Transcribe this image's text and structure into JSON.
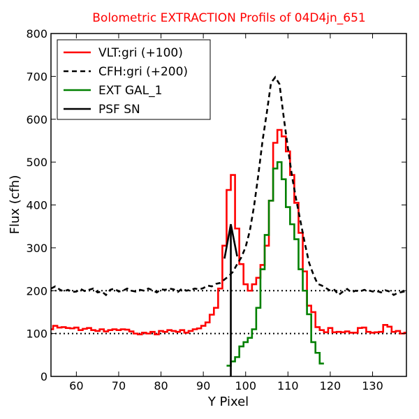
{
  "chart_data": {
    "type": "line",
    "title": "Bolometric EXTRACTION Profils of 04D4jn_651",
    "title_color": "#ff0000",
    "xlabel": "Y Pixel",
    "ylabel": "Flux (cfh)",
    "xlim": [
      54,
      138
    ],
    "ylim": [
      0,
      800
    ],
    "xticks": [
      60,
      70,
      80,
      90,
      100,
      110,
      120,
      130
    ],
    "yticks": [
      0,
      100,
      200,
      300,
      400,
      500,
      600,
      700,
      800
    ],
    "legend_position": "top-left",
    "reference_lines": [
      {
        "y": 100,
        "style": "dotted",
        "color": "#000000"
      },
      {
        "y": 200,
        "style": "dotted",
        "color": "#000000"
      }
    ],
    "series": [
      {
        "name": "VLT:gri (+100)",
        "color": "#ff0000",
        "style": "steps",
        "x": [
          54,
          55,
          56,
          57,
          58,
          59,
          60,
          61,
          62,
          63,
          64,
          65,
          66,
          67,
          68,
          69,
          70,
          71,
          72,
          73,
          74,
          75,
          76,
          77,
          78,
          79,
          80,
          81,
          82,
          83,
          84,
          85,
          86,
          87,
          88,
          89,
          90,
          91,
          92,
          93,
          94,
          95,
          96,
          97,
          98,
          99,
          100,
          101,
          102,
          103,
          104,
          105,
          106,
          107,
          108,
          109,
          110,
          111,
          112,
          113,
          114,
          115,
          116,
          117,
          118,
          119,
          120,
          121,
          122,
          123,
          124,
          125,
          126,
          127,
          128,
          129,
          130,
          131,
          132,
          133,
          134,
          135,
          136,
          137,
          138
        ],
        "y": [
          110,
          118,
          114,
          115,
          113,
          112,
          114,
          108,
          111,
          113,
          108,
          106,
          110,
          105,
          108,
          110,
          108,
          110,
          109,
          105,
          100,
          98,
          102,
          100,
          104,
          98,
          106,
          104,
          108,
          106,
          104,
          108,
          102,
          106,
          110,
          112,
          118,
          126,
          144,
          160,
          205,
          305,
          435,
          470,
          345,
          262,
          215,
          200,
          215,
          230,
          260,
          305,
          410,
          545,
          575,
          560,
          525,
          470,
          405,
          335,
          245,
          165,
          150,
          115,
          108,
          103,
          113,
          103,
          104,
          103,
          105,
          102,
          102,
          113,
          114,
          104,
          102,
          103,
          104,
          120,
          116,
          104,
          106,
          100,
          102
        ],
        "stroke_width": 2.6
      },
      {
        "name": "CFH:gri (+200)",
        "color": "#000000",
        "style": "dashed",
        "x": [
          54,
          55,
          56,
          57,
          58,
          59,
          60,
          61,
          62,
          63,
          64,
          65,
          66,
          67,
          68,
          69,
          70,
          71,
          72,
          73,
          74,
          75,
          76,
          77,
          78,
          79,
          80,
          81,
          82,
          83,
          84,
          85,
          86,
          87,
          88,
          89,
          90,
          91,
          92,
          93,
          94,
          95,
          96,
          97,
          98,
          99,
          100,
          101,
          102,
          103,
          104,
          105,
          106,
          107,
          108,
          109,
          110,
          111,
          112,
          113,
          114,
          115,
          116,
          117,
          118,
          119,
          120,
          121,
          122,
          123,
          124,
          125,
          126,
          127,
          128,
          129,
          130,
          131,
          132,
          133,
          134,
          135,
          136,
          137,
          138
        ],
        "y": [
          205,
          210,
          203,
          198,
          202,
          197,
          198,
          204,
          199,
          202,
          205,
          196,
          198,
          190,
          202,
          205,
          198,
          200,
          205,
          200,
          198,
          202,
          200,
          205,
          201,
          196,
          203,
          202,
          205,
          203,
          197,
          205,
          200,
          202,
          205,
          203,
          206,
          212,
          210,
          216,
          218,
          226,
          234,
          244,
          262,
          278,
          302,
          340,
          398,
          470,
          550,
          615,
          685,
          698,
          682,
          605,
          532,
          465,
          410,
          360,
          310,
          265,
          238,
          216,
          212,
          206,
          200,
          202,
          190,
          198,
          204,
          196,
          200,
          198,
          202,
          201,
          198,
          199,
          196,
          201,
          198,
          190,
          195,
          197,
          199
        ],
        "stroke_width": 2.6
      },
      {
        "name": "EXT GAL_1",
        "color": "#008000",
        "style": "steps",
        "x": [
          96,
          97,
          98,
          99,
          100,
          101,
          102,
          103,
          104,
          105,
          106,
          107,
          108,
          109,
          110,
          111,
          112,
          113,
          114,
          115,
          116,
          117,
          118
        ],
        "y": [
          25,
          35,
          45,
          70,
          80,
          90,
          110,
          160,
          250,
          330,
          410,
          485,
          500,
          460,
          395,
          355,
          320,
          250,
          200,
          145,
          80,
          55,
          30
        ],
        "stroke_width": 2.6
      },
      {
        "name": "PSF SN",
        "color": "#000000",
        "style": "solid",
        "x": [
          95,
          96.5,
          98
        ],
        "y": [
          275,
          355,
          280
        ],
        "marker_x": 96.5,
        "stroke_width": 2.6
      }
    ]
  }
}
